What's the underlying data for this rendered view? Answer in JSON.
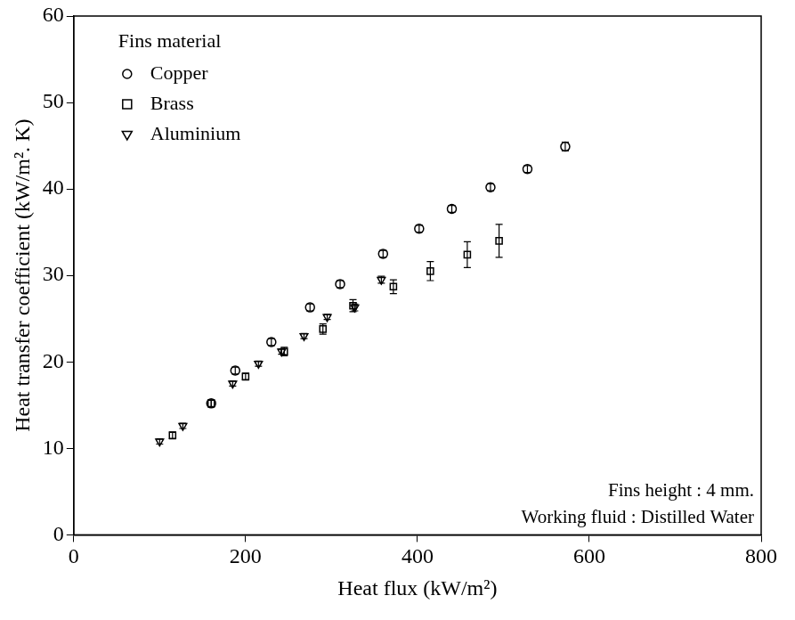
{
  "chart_data": {
    "type": "scatter",
    "x_label": "Heat flux (kW/m²)",
    "y_label": "Heat transfer coefficient (kW/m². K)",
    "legend_title": "Fins material",
    "legend": "upper left",
    "annotations": [
      "Fins height : 4 mm.",
      "Working fluid : Distilled Water"
    ],
    "xlim": [
      0,
      800
    ],
    "xticks": [
      0,
      200,
      400,
      600,
      800
    ],
    "ylim": [
      0,
      60
    ],
    "yticks": [
      0,
      10,
      20,
      30,
      40,
      50,
      60
    ],
    "grid": false,
    "series": [
      {
        "name": "Copper",
        "color": "#000000",
        "marker": "circle",
        "x": [
          160,
          188,
          230,
          275,
          310,
          360,
          402,
          440,
          485,
          528,
          572
        ],
        "values": [
          15.2,
          19.0,
          22.3,
          26.3,
          29.0,
          32.5,
          35.4,
          37.7,
          40.2,
          42.3,
          44.9
        ],
        "errors": [
          0.4,
          0.4,
          0.4,
          0.4,
          0.4,
          0.4,
          0.4,
          0.4,
          0.4,
          0.4,
          0.5
        ]
      },
      {
        "name": "Brass",
        "color": "#000000",
        "marker": "square",
        "x": [
          115,
          160,
          200,
          245,
          290,
          325,
          372,
          415,
          458,
          495
        ],
        "values": [
          11.5,
          15.2,
          18.3,
          21.2,
          23.8,
          26.5,
          28.7,
          30.5,
          32.4,
          34.0
        ],
        "errors": [
          0.4,
          0.4,
          0.4,
          0.5,
          0.6,
          0.7,
          0.8,
          1.1,
          1.5,
          1.9
        ]
      },
      {
        "name": "Aluminium",
        "color": "#000000",
        "marker": "triangle_down",
        "x": [
          100,
          127,
          185,
          215,
          242,
          268,
          295,
          327,
          358
        ],
        "values": [
          10.8,
          12.6,
          17.5,
          19.8,
          21.2,
          23.0,
          25.2,
          26.3,
          29.5
        ],
        "errors": [
          0.3,
          0.3,
          0.3,
          0.3,
          0.3,
          0.3,
          0.3,
          0.4,
          0.4
        ]
      }
    ]
  }
}
